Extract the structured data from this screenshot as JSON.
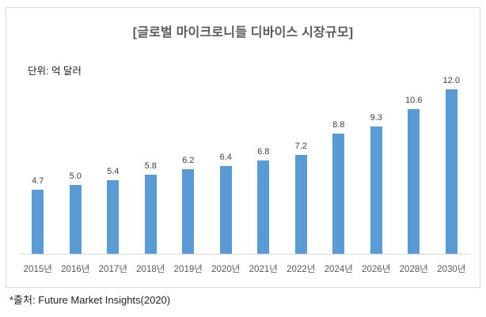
{
  "chart": {
    "title": "[글로벌 마이크로니들 디바이스 시장규모]",
    "unit_label": "단위: 억 달러",
    "source": "*출처: Future Market Insights(2020)"
  },
  "chart_data": {
    "type": "bar",
    "title": "[글로벌 마이크로니들 디바이스 시장규모]",
    "unit": "억 달러",
    "categories": [
      "2015년",
      "2016년",
      "2017년",
      "2018년",
      "2019년",
      "2020년",
      "2021년",
      "2022년",
      "2024년",
      "2026년",
      "2028년",
      "2030년"
    ],
    "values": [
      4.7,
      5.0,
      5.4,
      5.8,
      6.2,
      6.4,
      6.8,
      7.2,
      8.8,
      9.3,
      10.6,
      12.0
    ],
    "value_labels": [
      "4.7",
      "5.0",
      "5.4",
      "5.8",
      "6.2",
      "6.4",
      "6.8",
      "7.2",
      "8.8",
      "9.3",
      "10.6",
      "12.0"
    ],
    "xlabel": "",
    "ylabel": "",
    "ylim": [
      0,
      12.6
    ],
    "grid": false,
    "legend": "none",
    "bar_color": "#5b9bd5",
    "frame_border_color": "#d9d9d9",
    "axis_line_color": "#d9d9d9"
  }
}
